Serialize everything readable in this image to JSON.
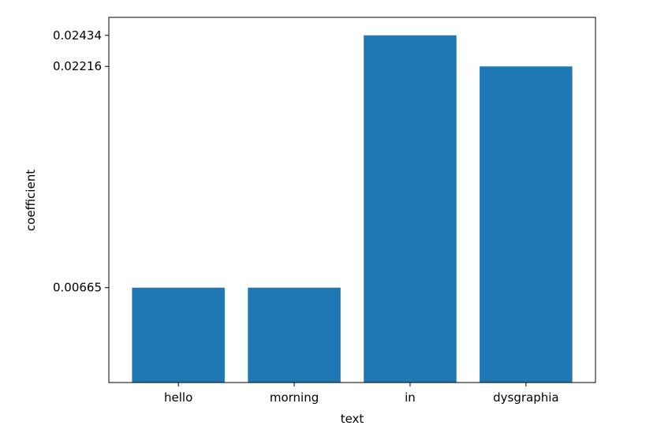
{
  "chart_data": {
    "type": "bar",
    "categories": [
      "hello",
      "morning",
      "in",
      "dysgraphia"
    ],
    "values": [
      0.00665,
      0.00665,
      0.02434,
      0.02216
    ],
    "xlabel": "text",
    "ylabel": "coefficient",
    "yticks": [
      0.00665,
      0.02216,
      0.02434
    ],
    "ytick_labels": [
      "0.00665",
      "0.02216",
      "0.02434"
    ],
    "ylim": [
      0,
      0.0256
    ],
    "grid": false,
    "bar_color": "#1f77b4"
  }
}
